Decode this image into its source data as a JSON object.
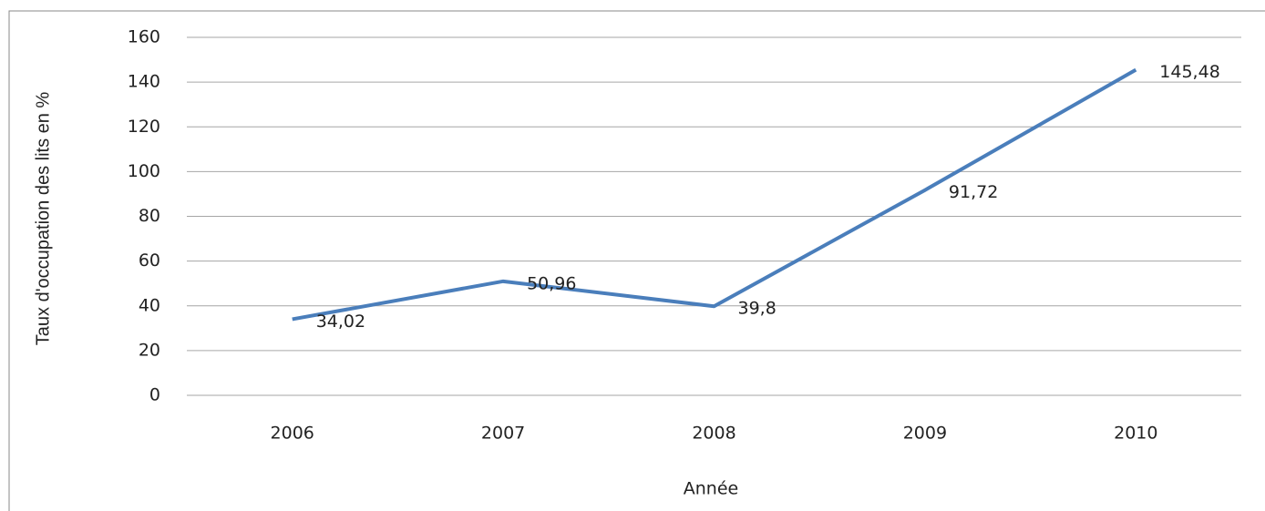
{
  "chart_data": {
    "type": "line",
    "x_label": "Année",
    "y_label": "Taux d'occupation des lits en %",
    "categories": [
      "2006",
      "2007",
      "2008",
      "2009",
      "2010"
    ],
    "values": [
      34.02,
      50.96,
      39.8,
      91.72,
      145.48
    ],
    "value_labels": [
      "34,02",
      "50,96",
      "39,8",
      "91,72",
      "145,48"
    ],
    "color": "#4a7ebb",
    "ylim": [
      0,
      160
    ],
    "yticks": [
      0,
      20,
      40,
      60,
      80,
      100,
      120,
      140,
      160
    ],
    "grid": true
  }
}
